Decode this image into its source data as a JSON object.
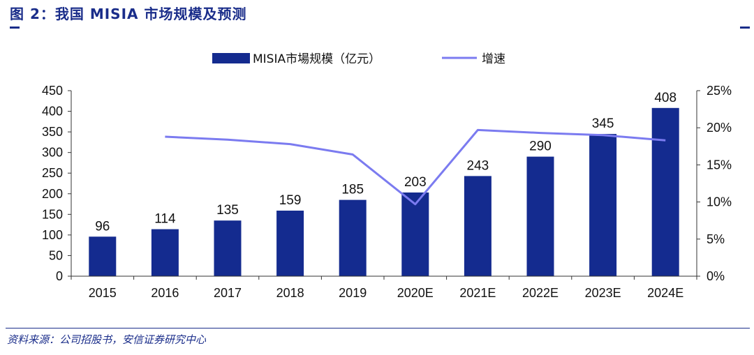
{
  "header": {
    "title": "图 2：我国 MISIA 市场规模及预测"
  },
  "footer": {
    "source": "资料来源：公司招股书，安信证券研究中心"
  },
  "colors": {
    "brand": "#1a2d8a",
    "bar": "#142b8f",
    "line": "#7b7bf0"
  },
  "chart_data": {
    "type": "bar",
    "categories": [
      "2015",
      "2016",
      "2017",
      "2018",
      "2019",
      "2020E",
      "2021E",
      "2022E",
      "2023E",
      "2024E"
    ],
    "series": [
      {
        "name": "MISIA市場规模（亿元）",
        "type": "bar",
        "axis": "left",
        "values": [
          96,
          114,
          135,
          159,
          185,
          203,
          243,
          290,
          345,
          408
        ],
        "data_labels": [
          "96",
          "114",
          "135",
          "159",
          "185",
          "203",
          "243",
          "290",
          "345",
          "408"
        ]
      },
      {
        "name": "增速",
        "type": "line",
        "axis": "right",
        "values": [
          null,
          18.8,
          18.4,
          17.8,
          16.4,
          9.7,
          19.7,
          19.3,
          19.0,
          18.3
        ]
      }
    ],
    "y_left": {
      "min": 0,
      "max": 450,
      "ticks": [
        "0",
        "50",
        "100",
        "150",
        "200",
        "250",
        "300",
        "350",
        "400",
        "450"
      ]
    },
    "y_right": {
      "min": 0,
      "max": 25,
      "ticks": [
        "0%",
        "5%",
        "10%",
        "15%",
        "20%",
        "25%"
      ]
    },
    "legend_position": "top",
    "grid": false
  }
}
